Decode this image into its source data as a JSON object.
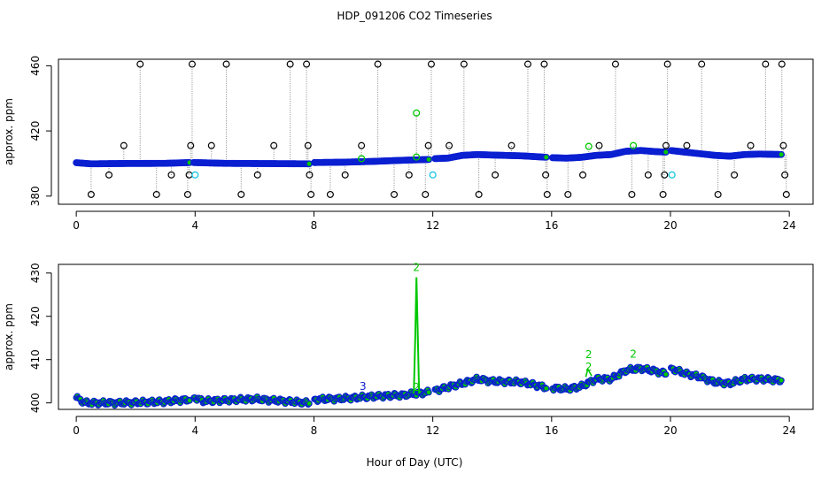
{
  "figure": {
    "title": "HDP_091206  CO2 Timeseries",
    "xlabel": "Hour of Day (UTC)"
  },
  "colors": {
    "raw": "#000000",
    "flagged": "#22c8e6",
    "avg": "#0a1ed2",
    "avg_fill": "#00c800",
    "green": "#00c800",
    "connector": "#888888"
  },
  "chart_data": [
    {
      "type": "scatter",
      "panel": "top",
      "ylabel": "approx. ppm",
      "xlim": [
        -0.6,
        24.8
      ],
      "ylim": [
        375,
        464
      ],
      "xticks": [
        0,
        4,
        8,
        12,
        16,
        20,
        24
      ],
      "yticks": [
        380,
        420,
        460
      ],
      "gap_hours": [
        [
          3.85,
          3.95
        ],
        [
          7.85,
          8.0
        ],
        [
          11.9,
          12.05
        ],
        [
          15.85,
          16.0
        ],
        [
          19.85,
          20.0
        ]
      ],
      "baseline": [
        [
          0,
          400.5
        ],
        [
          0.5,
          399.8
        ],
        [
          1.5,
          400.0
        ],
        [
          3.0,
          400.1
        ],
        [
          3.85,
          400.6
        ],
        [
          3.95,
          400.6
        ],
        [
          5,
          400.1
        ],
        [
          7.85,
          399.8
        ],
        [
          8.0,
          400.6
        ],
        [
          9,
          400.8
        ],
        [
          10,
          401.3
        ],
        [
          11,
          402.0
        ],
        [
          11.9,
          402.5
        ],
        [
          12.05,
          403.0
        ],
        [
          12.5,
          403.3
        ],
        [
          13,
          405
        ],
        [
          13.5,
          405.5
        ],
        [
          14,
          405.2
        ],
        [
          15,
          404.7
        ],
        [
          15.85,
          403.8
        ],
        [
          16.0,
          403.6
        ],
        [
          16.5,
          403.3
        ],
        [
          17,
          403.8
        ],
        [
          17.5,
          405
        ],
        [
          18,
          405.5
        ],
        [
          18.5,
          407.5
        ],
        [
          19,
          408
        ],
        [
          19.5,
          407.3
        ],
        [
          19.85,
          407.0
        ],
        [
          20.0,
          408
        ],
        [
          20.5,
          407
        ],
        [
          21,
          406
        ],
        [
          21.5,
          405
        ],
        [
          22,
          404.5
        ],
        [
          22.5,
          405.5
        ],
        [
          23,
          405.8
        ],
        [
          23.75,
          405.5
        ]
      ],
      "raw_points": [
        {
          "x": 0.5,
          "y": 381
        },
        {
          "x": 1.1,
          "y": 393
        },
        {
          "x": 1.6,
          "y": 411
        },
        {
          "x": 2.15,
          "y": 461
        },
        {
          "x": 2.7,
          "y": 381
        },
        {
          "x": 3.2,
          "y": 393
        },
        {
          "x": 3.75,
          "y": 381
        },
        {
          "x": 3.8,
          "y": 393
        },
        {
          "x": 3.85,
          "y": 411
        },
        {
          "x": 3.9,
          "y": 461
        },
        {
          "x": 4.55,
          "y": 411
        },
        {
          "x": 5.05,
          "y": 461
        },
        {
          "x": 5.55,
          "y": 381
        },
        {
          "x": 6.1,
          "y": 393
        },
        {
          "x": 6.65,
          "y": 411
        },
        {
          "x": 7.2,
          "y": 461
        },
        {
          "x": 7.75,
          "y": 461
        },
        {
          "x": 7.8,
          "y": 411
        },
        {
          "x": 7.85,
          "y": 393
        },
        {
          "x": 7.9,
          "y": 381
        },
        {
          "x": 8.55,
          "y": 381
        },
        {
          "x": 9.05,
          "y": 393
        },
        {
          "x": 9.6,
          "y": 411
        },
        {
          "x": 10.15,
          "y": 461
        },
        {
          "x": 10.7,
          "y": 381
        },
        {
          "x": 11.2,
          "y": 393
        },
        {
          "x": 11.75,
          "y": 381
        },
        {
          "x": 11.85,
          "y": 411
        },
        {
          "x": 11.95,
          "y": 461
        },
        {
          "x": 12.55,
          "y": 411
        },
        {
          "x": 13.05,
          "y": 461
        },
        {
          "x": 13.55,
          "y": 381
        },
        {
          "x": 14.1,
          "y": 393
        },
        {
          "x": 14.65,
          "y": 411
        },
        {
          "x": 15.2,
          "y": 461
        },
        {
          "x": 15.75,
          "y": 461
        },
        {
          "x": 15.8,
          "y": 393
        },
        {
          "x": 15.85,
          "y": 381
        },
        {
          "x": 16.55,
          "y": 381
        },
        {
          "x": 17.05,
          "y": 393
        },
        {
          "x": 17.6,
          "y": 411
        },
        {
          "x": 18.15,
          "y": 461
        },
        {
          "x": 18.7,
          "y": 381
        },
        {
          "x": 19.25,
          "y": 393
        },
        {
          "x": 19.75,
          "y": 381
        },
        {
          "x": 19.8,
          "y": 393
        },
        {
          "x": 19.85,
          "y": 411
        },
        {
          "x": 19.9,
          "y": 461
        },
        {
          "x": 20.55,
          "y": 411
        },
        {
          "x": 21.05,
          "y": 461
        },
        {
          "x": 21.6,
          "y": 381
        },
        {
          "x": 22.15,
          "y": 393
        },
        {
          "x": 22.7,
          "y": 411
        },
        {
          "x": 23.2,
          "y": 461
        },
        {
          "x": 23.75,
          "y": 461
        },
        {
          "x": 23.8,
          "y": 411
        },
        {
          "x": 23.85,
          "y": 393
        },
        {
          "x": 23.9,
          "y": 381
        }
      ],
      "flagged_points": [
        {
          "x": 4.0,
          "y": 393
        },
        {
          "x": 12.0,
          "y": 393
        },
        {
          "x": 20.05,
          "y": 393
        }
      ],
      "green_points": [
        {
          "x": 11.45,
          "y": 431
        },
        {
          "x": 11.45,
          "y": 404
        },
        {
          "x": 17.25,
          "y": 410.5
        },
        {
          "x": 18.75,
          "y": 411
        },
        {
          "x": 9.6,
          "y": 403
        }
      ]
    },
    {
      "type": "line",
      "panel": "bottom",
      "ylabel": "approx. ppm",
      "xlim": [
        -0.6,
        24.8
      ],
      "ylim": [
        398.5,
        432
      ],
      "xticks": [
        0,
        4,
        8,
        12,
        16,
        20,
        24
      ],
      "yticks": [
        400,
        410,
        420,
        430
      ],
      "gap_hours": [
        [
          3.85,
          3.95
        ],
        [
          7.85,
          8.0
        ],
        [
          11.9,
          12.05
        ],
        [
          15.85,
          16.0
        ],
        [
          19.85,
          20.0
        ]
      ],
      "baseline": [
        [
          0,
          401.2
        ],
        [
          0.3,
          400.0
        ],
        [
          1.5,
          400.0
        ],
        [
          3.0,
          400.3
        ],
        [
          3.85,
          400.8
        ],
        [
          3.95,
          401.3
        ],
        [
          4.3,
          400.4
        ],
        [
          5,
          400.6
        ],
        [
          6,
          400.9
        ],
        [
          7.85,
          400.0
        ],
        [
          8.0,
          400.8
        ],
        [
          9,
          401.0
        ],
        [
          10,
          401.5
        ],
        [
          11,
          401.8
        ],
        [
          11.9,
          402.5
        ],
        [
          12.05,
          402.8
        ],
        [
          12.5,
          403.6
        ],
        [
          13,
          404.5
        ],
        [
          13.5,
          405.5
        ],
        [
          14,
          405.0
        ],
        [
          15,
          404.8
        ],
        [
          15.85,
          403.5
        ],
        [
          16.0,
          403.5
        ],
        [
          16.5,
          403.2
        ],
        [
          17,
          403.8
        ],
        [
          17.5,
          405.5
        ],
        [
          18,
          405.5
        ],
        [
          18.5,
          407.5
        ],
        [
          19,
          408.0
        ],
        [
          19.5,
          407.3
        ],
        [
          19.85,
          406.8
        ],
        [
          20.0,
          408.0
        ],
        [
          20.5,
          406.8
        ],
        [
          21,
          406.0
        ],
        [
          21.5,
          404.8
        ],
        [
          22,
          404.5
        ],
        [
          22.5,
          405.5
        ],
        [
          23,
          405.5
        ],
        [
          23.75,
          405.2
        ]
      ],
      "spike": {
        "x": 11.45,
        "peak": 429,
        "label": "2"
      },
      "annotations": [
        {
          "x": 11.45,
          "y": 430.5,
          "text": "2"
        },
        {
          "x": 11.45,
          "y": 402.8,
          "text": "2"
        },
        {
          "x": 17.25,
          "y": 410.3,
          "text": "2"
        },
        {
          "x": 17.25,
          "y": 407.5,
          "text": "2"
        },
        {
          "x": 18.75,
          "y": 410.5,
          "text": "2"
        },
        {
          "x": 9.65,
          "y": 403.0,
          "text": "3"
        }
      ]
    }
  ]
}
